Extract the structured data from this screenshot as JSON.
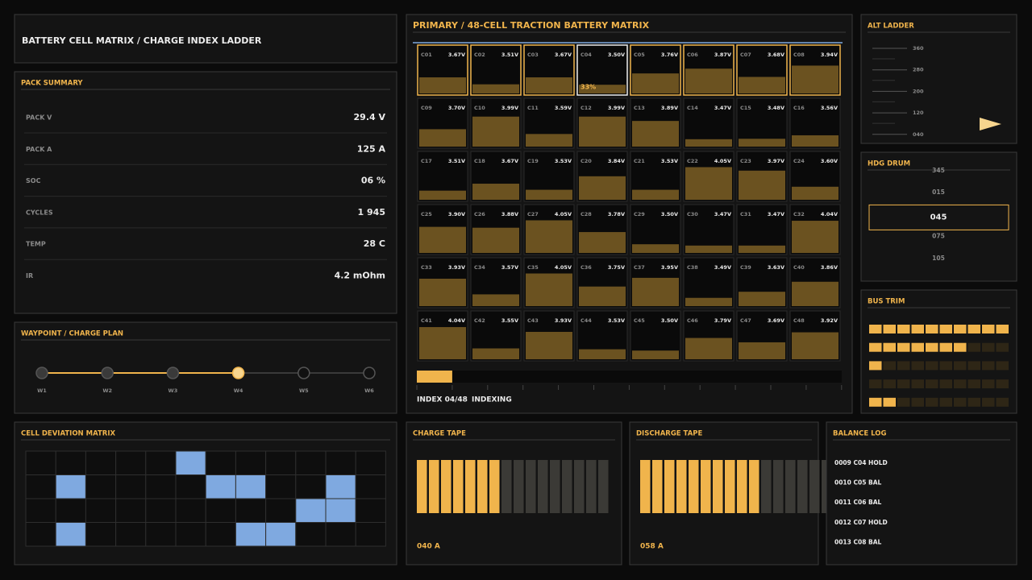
{
  "header": {
    "title": "BATTERY CELL MATRIX / CHARGE INDEX LADDER"
  },
  "pack_summary": {
    "title": "PACK SUMMARY",
    "rows": [
      [
        "PACK V",
        "29.4 V"
      ],
      [
        "PACK A",
        "125 A"
      ],
      [
        "SOC",
        "06 %"
      ],
      [
        "CYCLES",
        "1 945"
      ],
      [
        "TEMP",
        "28 C"
      ],
      [
        "IR",
        "4.2 mOhm"
      ]
    ]
  },
  "waypoint": {
    "title": "WAYPOINT / CHARGE PLAN",
    "points": [
      "W1",
      "W2",
      "W3",
      "W4",
      "W5",
      "W6"
    ],
    "active": 3
  },
  "deviation": {
    "title": "CELL DEVIATION MATRIX",
    "cells": [
      [
        0,
        0,
        0,
        0,
        0,
        1,
        0,
        0,
        0,
        0,
        0,
        0
      ],
      [
        0,
        1,
        0,
        0,
        0,
        0,
        1,
        1,
        0,
        0,
        1,
        0
      ],
      [
        0,
        0,
        0,
        0,
        0,
        0,
        0,
        0,
        0,
        1,
        1,
        0
      ],
      [
        0,
        1,
        0,
        0,
        0,
        0,
        0,
        1,
        1,
        0,
        0,
        0
      ]
    ]
  },
  "matrix": {
    "title": "PRIMARY / 48-CELL TRACTION BATTERY MATRIX",
    "scale": [
      3.3,
      4.3
    ],
    "active": 3,
    "active_label": "33%",
    "outlined": 8,
    "cells": [
      {
        "id": "C01",
        "v": 3.67,
        "label": "3.67V"
      },
      {
        "id": "C02",
        "v": 3.51,
        "label": "3.51V"
      },
      {
        "id": "C03",
        "v": 3.67,
        "label": "3.67V"
      },
      {
        "id": "C04",
        "v": 3.5,
        "label": "3.50V"
      },
      {
        "id": "C05",
        "v": 3.76,
        "label": "3.76V"
      },
      {
        "id": "C06",
        "v": 3.87,
        "label": "3.87V"
      },
      {
        "id": "C07",
        "v": 3.68,
        "label": "3.68V"
      },
      {
        "id": "C08",
        "v": 3.94,
        "label": "3.94V"
      },
      {
        "id": "C09",
        "v": 3.7,
        "label": "3.70V"
      },
      {
        "id": "C10",
        "v": 3.99,
        "label": "3.99V"
      },
      {
        "id": "C11",
        "v": 3.59,
        "label": "3.59V"
      },
      {
        "id": "C12",
        "v": 3.99,
        "label": "3.99V"
      },
      {
        "id": "C13",
        "v": 3.89,
        "label": "3.89V"
      },
      {
        "id": "C14",
        "v": 3.47,
        "label": "3.47V"
      },
      {
        "id": "C15",
        "v": 3.48,
        "label": "3.48V"
      },
      {
        "id": "C16",
        "v": 3.56,
        "label": "3.56V"
      },
      {
        "id": "C17",
        "v": 3.51,
        "label": "3.51V"
      },
      {
        "id": "C18",
        "v": 3.67,
        "label": "3.67V"
      },
      {
        "id": "C19",
        "v": 3.53,
        "label": "3.53V"
      },
      {
        "id": "C20",
        "v": 3.84,
        "label": "3.84V"
      },
      {
        "id": "C21",
        "v": 3.53,
        "label": "3.53V"
      },
      {
        "id": "C22",
        "v": 4.05,
        "label": "4.05V"
      },
      {
        "id": "C23",
        "v": 3.97,
        "label": "3.97V"
      },
      {
        "id": "C24",
        "v": 3.6,
        "label": "3.60V"
      },
      {
        "id": "C25",
        "v": 3.9,
        "label": "3.90V"
      },
      {
        "id": "C26",
        "v": 3.88,
        "label": "3.88V"
      },
      {
        "id": "C27",
        "v": 4.05,
        "label": "4.05V"
      },
      {
        "id": "C28",
        "v": 3.78,
        "label": "3.78V"
      },
      {
        "id": "C29",
        "v": 3.5,
        "label": "3.50V"
      },
      {
        "id": "C30",
        "v": 3.47,
        "label": "3.47V"
      },
      {
        "id": "C31",
        "v": 3.47,
        "label": "3.47V"
      },
      {
        "id": "C32",
        "v": 4.04,
        "label": "4.04V"
      },
      {
        "id": "C33",
        "v": 3.93,
        "label": "3.93V"
      },
      {
        "id": "C34",
        "v": 3.57,
        "label": "3.57V"
      },
      {
        "id": "C35",
        "v": 4.05,
        "label": "4.05V"
      },
      {
        "id": "C36",
        "v": 3.75,
        "label": "3.75V"
      },
      {
        "id": "C37",
        "v": 3.95,
        "label": "3.95V"
      },
      {
        "id": "C38",
        "v": 3.49,
        "label": "3.49V"
      },
      {
        "id": "C39",
        "v": 3.63,
        "label": "3.63V"
      },
      {
        "id": "C40",
        "v": 3.86,
        "label": "3.86V"
      },
      {
        "id": "C41",
        "v": 4.04,
        "label": "4.04V"
      },
      {
        "id": "C42",
        "v": 3.55,
        "label": "3.55V"
      },
      {
        "id": "C43",
        "v": 3.93,
        "label": "3.93V"
      },
      {
        "id": "C44",
        "v": 3.53,
        "label": "3.53V"
      },
      {
        "id": "C45",
        "v": 3.5,
        "label": "3.50V"
      },
      {
        "id": "C46",
        "v": 3.79,
        "label": "3.79V"
      },
      {
        "id": "C47",
        "v": 3.69,
        "label": "3.69V"
      },
      {
        "id": "C48",
        "v": 3.92,
        "label": "3.92V"
      }
    ],
    "index_label": "INDEX 04/48",
    "status": "INDEXING",
    "progress": 4,
    "progress_max": 48
  },
  "alt_ladder": {
    "title": "ALT LADDER",
    "ticks": [
      "360",
      "280",
      "200",
      "120",
      "040"
    ]
  },
  "hdg_drum": {
    "title": "HDG DRUM",
    "values": [
      "345",
      "015",
      "045",
      "075",
      "105"
    ],
    "active": 2
  },
  "bus_trim": {
    "title": "BUS TRIM",
    "segments": 10,
    "levels": [
      10,
      7,
      1,
      0,
      2
    ]
  },
  "charge_tape": {
    "title": "CHARGE TAPE",
    "value": "040 A",
    "bars": 16,
    "lit": 7
  },
  "discharge_tape": {
    "title": "DISCHARGE TAPE",
    "value": "058 A",
    "bars": 16,
    "lit": 10
  },
  "balance_log": {
    "title": "BALANCE LOG",
    "lines": [
      "0009 C04 HOLD",
      "0010 C05 BAL",
      "0011 C06 BAL",
      "0012 C07 HOLD",
      "0013 C08 BAL"
    ]
  }
}
